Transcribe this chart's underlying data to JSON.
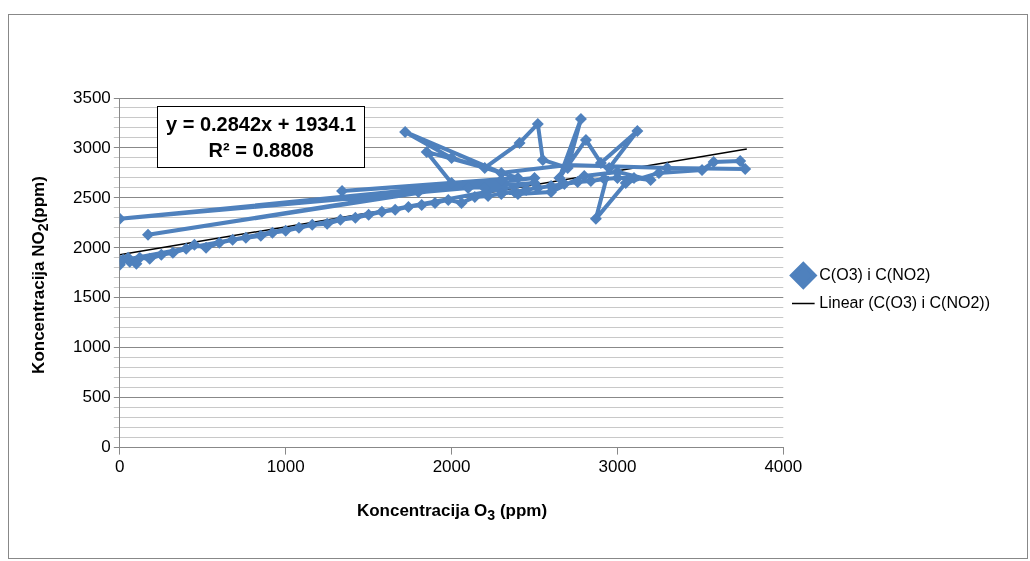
{
  "chart_data": {
    "type": "line",
    "xlabel": "Koncentracija O$_{3}$ (ppm)",
    "ylabel": "Koncentracija NO$_{2}$(ppm)",
    "annotations": [
      "y = 0.2842x + 1934.1\nR² = 0.8808"
    ],
    "xlim": [
      0,
      4000
    ],
    "xticks": [
      0,
      1000,
      2000,
      3000,
      4000
    ],
    "ylim": [
      0,
      3500
    ],
    "yticks": [
      0,
      {
        "value": 100,
        "label": null
      },
      {
        "value": 200,
        "label": null
      },
      {
        "value": 300,
        "label": null
      },
      {
        "value": 400,
        "label": null
      },
      500,
      {
        "value": 600,
        "label": null
      },
      {
        "value": 700,
        "label": null
      },
      {
        "value": 800,
        "label": null
      },
      {
        "value": 900,
        "label": null
      },
      1000,
      {
        "value": 1100,
        "label": null
      },
      {
        "value": 1200,
        "label": null
      },
      {
        "value": 1300,
        "label": null
      },
      {
        "value": 1400,
        "label": null
      },
      1500,
      {
        "value": 1600,
        "label": null
      },
      {
        "value": 1700,
        "label": null
      },
      {
        "value": 1800,
        "label": null
      },
      {
        "value": 1900,
        "label": null
      },
      2000,
      {
        "value": 2100,
        "label": null
      },
      {
        "value": 2200,
        "label": null
      },
      {
        "value": 2300,
        "label": null
      },
      {
        "value": 2400,
        "label": null
      },
      2500,
      {
        "value": 2600,
        "label": null
      },
      {
        "value": 2700,
        "label": null
      },
      {
        "value": 2800,
        "label": null
      },
      {
        "value": 2900,
        "label": null
      },
      3000,
      {
        "value": 3100,
        "label": null
      },
      {
        "value": 3200,
        "label": null
      },
      {
        "value": 3300,
        "label": null
      },
      {
        "value": 3400,
        "label": null
      },
      3500
    ],
    "grid": "y",
    "legend": "right",
    "marker": "diamond",
    "line_style": "solid",
    "series": [
      {
        "name": "C(O3) i C(NO2)",
        "color": "#4f81bd",
        "x": [
          0,
          20,
          60,
          120,
          180,
          250,
          320,
          400,
          450,
          520,
          600,
          680,
          760,
          850,
          920,
          1000,
          1080,
          1160,
          1250,
          1330,
          1420,
          1500,
          1580,
          1660,
          1740,
          1820,
          1900,
          1980,
          2060,
          2140,
          2220,
          2300,
          2380,
          2450,
          2520,
          2600,
          2680,
          2760,
          2840,
          2920,
          3000,
          3100,
          3200,
          3000,
          2800,
          2600,
          2400,
          2200,
          2000,
          1850,
          2200,
          2410,
          2520,
          2550,
          2700,
          2780,
          2650,
          2810,
          2900,
          3120,
          2950,
          2870,
          3050,
          3250,
          3510,
          3580,
          3740,
          3770,
          3300,
          2700,
          2300,
          1720,
          2000,
          2400,
          1340,
          2300,
          170,
          1800,
          2500,
          0,
          2100,
          2500,
          0,
          50,
          100
        ],
        "values": [
          1830,
          1880,
          1860,
          1900,
          1890,
          1930,
          1950,
          1990,
          2030,
          2000,
          2050,
          2080,
          2100,
          2120,
          2150,
          2170,
          2200,
          2230,
          2240,
          2280,
          2300,
          2330,
          2360,
          2380,
          2410,
          2430,
          2450,
          2480,
          2450,
          2510,
          2520,
          2540,
          2560,
          2580,
          2600,
          2620,
          2640,
          2660,
          2670,
          2690,
          2700,
          2700,
          2680,
          2760,
          2720,
          2560,
          2540,
          2600,
          2650,
          2960,
          2800,
          3050,
          3240,
          2880,
          2800,
          3290,
          2700,
          3080,
          2850,
          3170,
          2800,
          2290,
          2650,
          2750,
          2780,
          2860,
          2870,
          2790,
          2800,
          2830,
          2750,
          3160,
          2900,
          2700,
          2570,
          2680,
          2130,
          2560,
          2700,
          2290,
          2600,
          2650,
          1870,
          1900,
          1840
        ]
      },
      {
        "name": "Linear (C(O3) i C(NO2))",
        "color": "#000000",
        "marker": "none",
        "x": [
          0,
          3780
        ],
        "values": [
          1930,
          2990
        ]
      }
    ]
  }
}
